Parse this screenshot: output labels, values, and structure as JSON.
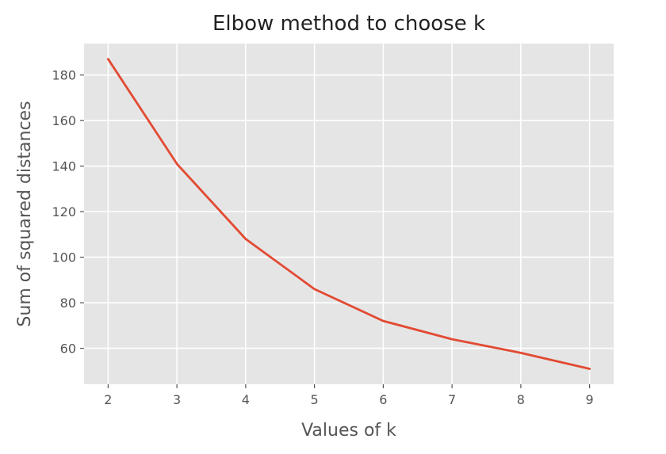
{
  "chart_data": {
    "type": "line",
    "title": "Elbow method to choose k",
    "xlabel": "Values of k",
    "ylabel": "Sum of squared distances",
    "x": [
      2,
      3,
      4,
      5,
      6,
      7,
      8,
      9
    ],
    "series": [
      {
        "values": [
          187,
          141,
          108,
          86,
          72,
          64,
          58,
          51
        ],
        "color": "#e24a33"
      }
    ],
    "xticks": [
      2,
      3,
      4,
      5,
      6,
      7,
      8,
      9
    ],
    "yticks": [
      60,
      80,
      100,
      120,
      140,
      160,
      180
    ],
    "xlim": [
      1.65,
      9.35
    ],
    "ylim": [
      44.2,
      193.8
    ],
    "grid": true,
    "style": {
      "background": "#e5e5e5",
      "grid_color": "#ffffff"
    }
  }
}
